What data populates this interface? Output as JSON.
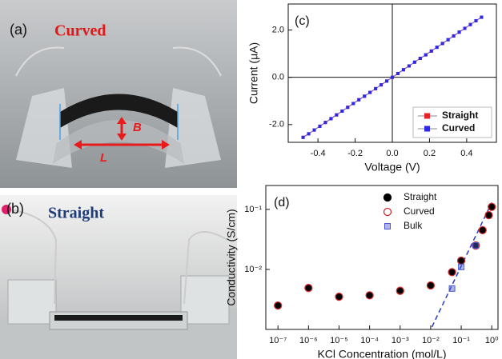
{
  "panels": {
    "a": {
      "label": "(a)",
      "title": "Curved",
      "arrow_labels": [
        "B",
        "L"
      ]
    },
    "b": {
      "label": "(b)",
      "title": "Straight"
    }
  },
  "chart_data": [
    {
      "type": "line",
      "panel_label": "(c)",
      "x_label": "Voltage (V)",
      "y_label": "Current (μA)",
      "x": [
        -0.48,
        -0.45,
        -0.42,
        -0.39,
        -0.36,
        -0.33,
        -0.3,
        -0.27,
        -0.24,
        -0.21,
        -0.18,
        -0.15,
        -0.12,
        -0.09,
        -0.06,
        -0.03,
        0,
        0.03,
        0.06,
        0.09,
        0.12,
        0.15,
        0.18,
        0.21,
        0.24,
        0.27,
        0.3,
        0.33,
        0.36,
        0.39,
        0.42,
        0.45,
        0.48
      ],
      "series": [
        {
          "name": "Straight",
          "color": "#e8202a",
          "values": [
            -2.54,
            -2.39,
            -2.23,
            -2.07,
            -1.91,
            -1.75,
            -1.59,
            -1.43,
            -1.27,
            -1.11,
            -0.95,
            -0.8,
            -0.64,
            -0.48,
            -0.32,
            -0.16,
            0,
            0.16,
            0.32,
            0.48,
            0.64,
            0.8,
            0.95,
            1.11,
            1.27,
            1.43,
            1.59,
            1.75,
            1.91,
            2.07,
            2.23,
            2.39,
            2.54
          ]
        },
        {
          "name": "Curved",
          "color": "#2a2ae8",
          "values": [
            -2.54,
            -2.39,
            -2.23,
            -2.07,
            -1.91,
            -1.75,
            -1.59,
            -1.43,
            -1.27,
            -1.11,
            -0.95,
            -0.8,
            -0.64,
            -0.48,
            -0.32,
            -0.16,
            0,
            0.16,
            0.32,
            0.48,
            0.64,
            0.8,
            0.95,
            1.11,
            1.27,
            1.43,
            1.59,
            1.75,
            1.91,
            2.07,
            2.23,
            2.39,
            2.54
          ]
        }
      ],
      "xlim": [
        -0.56,
        0.56
      ],
      "ylim": [
        -2.75,
        3.1
      ],
      "xticks": [
        -0.4,
        -0.2,
        {
          "value": 0,
          "label": "0.0"
        },
        0.2,
        0.4
      ],
      "yticks": [
        {
          "value": -2,
          "label": "-2.0"
        },
        {
          "value": 0,
          "label": "0.0"
        },
        {
          "value": 2,
          "label": "2.0"
        }
      ],
      "zero_lines": true,
      "legend": "lower right"
    },
    {
      "type": "scatter",
      "panel_label": "(d)",
      "x_label": "KCl Concentration (mol/L)",
      "y_label": "Conductivity (S/cm)",
      "xscale": "log",
      "yscale": "log",
      "series": [
        {
          "name": "Straight",
          "color": "#000000",
          "marker": "circle-filled",
          "x": [
            1e-07,
            1e-06,
            1e-05,
            0.0001,
            0.001,
            0.01,
            0.05,
            0.1,
            0.3,
            0.5,
            0.8,
            1
          ],
          "values": [
            0.0025,
            0.0049,
            0.0035,
            0.0037,
            0.0044,
            0.0054,
            0.009,
            0.014,
            0.025,
            0.045,
            0.08,
            0.11
          ]
        },
        {
          "name": "Curved",
          "color": "#d42a2a",
          "marker": "circle-open",
          "x": [
            1e-07,
            1e-06,
            1e-05,
            0.0001,
            0.001,
            0.01,
            0.05,
            0.1,
            0.3,
            0.5,
            0.8,
            1
          ],
          "values": [
            0.0025,
            0.0049,
            0.0035,
            0.0037,
            0.0044,
            0.0054,
            0.009,
            0.014,
            0.025,
            0.045,
            0.08,
            0.11
          ]
        },
        {
          "name": "Bulk",
          "color": "#4a5ad0",
          "marker": "square",
          "x": [
            0.05,
            0.1,
            0.3
          ],
          "values": [
            0.0048,
            0.011,
            0.025
          ]
        }
      ],
      "fit_line": {
        "color": "#2a3ac8",
        "x": [
          0.011,
          1
        ],
        "values": [
          0.0011,
          0.13
        ]
      },
      "xlim": [
        4e-08,
        1.6
      ],
      "ylim": [
        0.001,
        0.25
      ],
      "xticks": [
        {
          "value": 1e-07,
          "label": "10⁻⁷"
        },
        {
          "value": 1e-06,
          "label": "10⁻⁶"
        },
        {
          "value": 1e-05,
          "label": "10⁻⁵"
        },
        {
          "value": 0.0001,
          "label": "10⁻⁴"
        },
        {
          "value": 0.001,
          "label": "10⁻³"
        },
        {
          "value": 0.01,
          "label": "10⁻²"
        },
        {
          "value": 0.1,
          "label": "10⁻¹"
        },
        {
          "value": 1,
          "label": "10⁰"
        }
      ],
      "yticks": [
        {
          "value": 0.01,
          "label": "10⁻²"
        },
        {
          "value": 0.1,
          "label": "10⁻¹"
        }
      ],
      "legend": "upper right"
    }
  ]
}
